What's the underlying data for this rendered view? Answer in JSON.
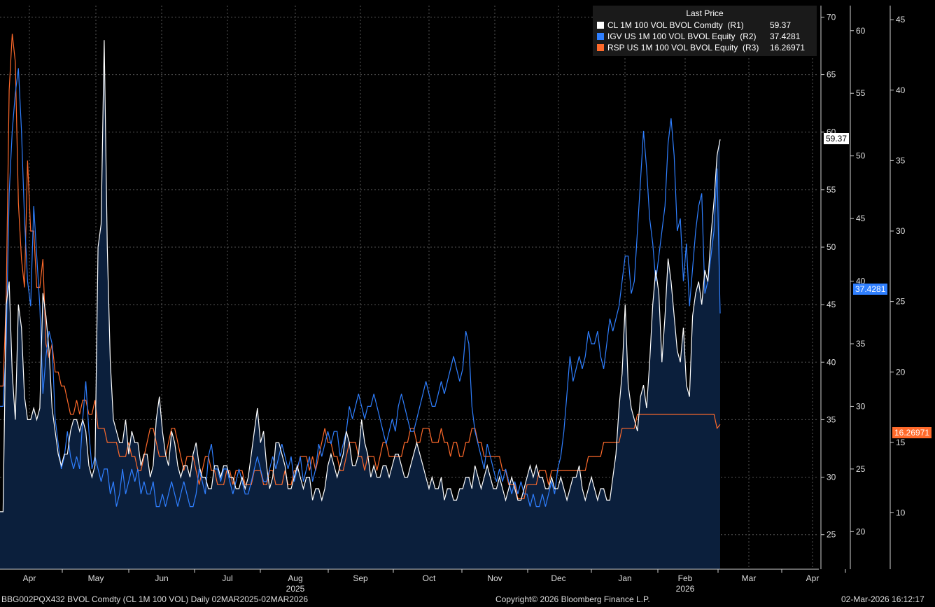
{
  "chart_data": {
    "type": "area",
    "legend_title": "Last Price",
    "x_labels": [
      "Apr",
      "May",
      "Jun",
      "Jul",
      "Aug",
      "Sep",
      "Oct",
      "Nov",
      "Dec",
      "Jan",
      "Feb",
      "Mar",
      "Apr"
    ],
    "year_labels": [
      {
        "month": "Aug",
        "year": "2025"
      },
      {
        "month": "Feb",
        "year": "2026"
      }
    ],
    "axes": {
      "R1": {
        "min": 22,
        "max": 71,
        "ticks": [
          25,
          30,
          35,
          40,
          45,
          50,
          55,
          60,
          65,
          70
        ]
      },
      "R2": {
        "min": 17,
        "max": 62,
        "ticks": [
          20,
          25,
          30,
          35,
          40,
          45,
          50,
          55,
          60
        ]
      },
      "R3": {
        "min": 6,
        "max": 46,
        "ticks": [
          10,
          15,
          20,
          25,
          30,
          35,
          40,
          45
        ]
      }
    },
    "series": [
      {
        "name": "CL 1M 100 VOL BVOL Comdty",
        "axis": "R1",
        "axis_label": "(R1)",
        "last": "59.37",
        "color": "#ffffff",
        "values": [
          27,
          27,
          45,
          47,
          39,
          35,
          45,
          43,
          37,
          35,
          35,
          36,
          35,
          36,
          46,
          44,
          41,
          36,
          34,
          32,
          31,
          32,
          32,
          34,
          35,
          35,
          34,
          35,
          34,
          31,
          30,
          31,
          50,
          52,
          68,
          50,
          40,
          35,
          34,
          33,
          33,
          35,
          32,
          34,
          33,
          33,
          31,
          32,
          32,
          30,
          31,
          35,
          37,
          34,
          32,
          31,
          34,
          33,
          31,
          30,
          31,
          31,
          30,
          32,
          33,
          31,
          30,
          30,
          29,
          29,
          31,
          31,
          30,
          31,
          31,
          30,
          30,
          29,
          29,
          30,
          29,
          30,
          32,
          34,
          36,
          33,
          34,
          31,
          29,
          30,
          33,
          33,
          32,
          31,
          29,
          29,
          30,
          31,
          30,
          29,
          30,
          30,
          28,
          29,
          29,
          28,
          29,
          31,
          32,
          31,
          30,
          31,
          32,
          34,
          33,
          31,
          31,
          32,
          35,
          33,
          32,
          30,
          31,
          30,
          30,
          31,
          31,
          30,
          31,
          32,
          32,
          31,
          30,
          30,
          31,
          32,
          33,
          32,
          31,
          30,
          29,
          30,
          29,
          29,
          30,
          28,
          29,
          29,
          28,
          28,
          29,
          29,
          30,
          30,
          29,
          31,
          30,
          29,
          30,
          31,
          30,
          29,
          29,
          30,
          29,
          28,
          29,
          30,
          29,
          28,
          28,
          29,
          30,
          31,
          30,
          31,
          30,
          30,
          29,
          29,
          30,
          29,
          29,
          30,
          29,
          28,
          29,
          30,
          30,
          31,
          29,
          28,
          29,
          30,
          29,
          28,
          29,
          29,
          28,
          28,
          30,
          32,
          36,
          39,
          45,
          38,
          36,
          35,
          34,
          37,
          38,
          36,
          40,
          45,
          48,
          46,
          40,
          44,
          49,
          47,
          44,
          41,
          40,
          43,
          38,
          37,
          44,
          46,
          47,
          45,
          48,
          47,
          51,
          54,
          58,
          59.37
        ]
      },
      {
        "name": "IGV US 1M 100 VOL BVOL Equity",
        "axis": "R2",
        "axis_label": "(R2)",
        "last": "37.4281",
        "color": "#2f7fff",
        "values": [
          30,
          30,
          35,
          47,
          52,
          55,
          57,
          52,
          45,
          40,
          38,
          46,
          42,
          38,
          31,
          34,
          36,
          35,
          29,
          27,
          25,
          26,
          28,
          26,
          25,
          26,
          25,
          29,
          32,
          28,
          25,
          26,
          25,
          24,
          25,
          25,
          23,
          24,
          22,
          23,
          25,
          23,
          24,
          25,
          24,
          25,
          23,
          24,
          23,
          23,
          24,
          22,
          22,
          23,
          22,
          23,
          24,
          23,
          22,
          23,
          24,
          23,
          22,
          22,
          23,
          25,
          24,
          23,
          26,
          27,
          25,
          25,
          24,
          25,
          25,
          24,
          23,
          24,
          25,
          24,
          23,
          23,
          24,
          25,
          26,
          25,
          24,
          24,
          25,
          26,
          25,
          26,
          27,
          26,
          25,
          26,
          24,
          25,
          26,
          24,
          25,
          26,
          24,
          25,
          27,
          26,
          27,
          28,
          27,
          28,
          28,
          26,
          27,
          28,
          30,
          29,
          30,
          31,
          30,
          29,
          30,
          30,
          31,
          30,
          29,
          28,
          27,
          28,
          29,
          28,
          30,
          31,
          30,
          29,
          28,
          28,
          29,
          30,
          31,
          32,
          31,
          30,
          30,
          31,
          32,
          31,
          32,
          33,
          34,
          33,
          32,
          33,
          36,
          35,
          30,
          28,
          27,
          26,
          25,
          27,
          26,
          25,
          24,
          25,
          24,
          25,
          24,
          23,
          24,
          23,
          24,
          23,
          23,
          22,
          23,
          22,
          22,
          23,
          22,
          23,
          24,
          23,
          25,
          26,
          28,
          31,
          34,
          32,
          33,
          34,
          33,
          34,
          36,
          35,
          35,
          36,
          34,
          33,
          35,
          37,
          36,
          37,
          38,
          40,
          42,
          42,
          39,
          40,
          44,
          48,
          52,
          49,
          45,
          43,
          40,
          42,
          44,
          46,
          51,
          53,
          50,
          44,
          45,
          40,
          43,
          38,
          41,
          44,
          46,
          47,
          39,
          40,
          42,
          44,
          49,
          37.4281
        ]
      },
      {
        "name": "RSP US 1M 100 VOL BVOL Equity",
        "axis": "R3",
        "axis_label": "(R3)",
        "last": "16.26971",
        "color": "#ff6a2b",
        "values": [
          19,
          19,
          25,
          40,
          44,
          42,
          32,
          28,
          26,
          35,
          30,
          30,
          26,
          26,
          28,
          22,
          21,
          22,
          20,
          20,
          19,
          19,
          18,
          17,
          17,
          18,
          17,
          18,
          18,
          17,
          17,
          18,
          16,
          16,
          16,
          15,
          15,
          15,
          15,
          14,
          14,
          14,
          15,
          14,
          14,
          13,
          13,
          14,
          15,
          16,
          16,
          15,
          14,
          14,
          14,
          15,
          16,
          16,
          15,
          14,
          13,
          14,
          14,
          14,
          13,
          12,
          13,
          14,
          14,
          13,
          13,
          12,
          12,
          12,
          13,
          13,
          12,
          13,
          13,
          13,
          12,
          12,
          12,
          13,
          13,
          13,
          12,
          12,
          13,
          13,
          12,
          12,
          12,
          13,
          12,
          12,
          13,
          13,
          14,
          14,
          14,
          13,
          14,
          13,
          14,
          15,
          16,
          15,
          15,
          14,
          14,
          13,
          13,
          14,
          15,
          15,
          15,
          14,
          14,
          13,
          14,
          14,
          14,
          13,
          14,
          15,
          15,
          14,
          14,
          14,
          14,
          14,
          15,
          15,
          16,
          16,
          15,
          15,
          16,
          16,
          16,
          15,
          15,
          15,
          16,
          15,
          15,
          14,
          15,
          15,
          14,
          14,
          15,
          15,
          16,
          16,
          15,
          15,
          14,
          14,
          14,
          14,
          14,
          14,
          13,
          13,
          12,
          12,
          12,
          11,
          11,
          11,
          12,
          12,
          12,
          12,
          13,
          13,
          13,
          12,
          13,
          13,
          13,
          13,
          13,
          13,
          13,
          13,
          13,
          13,
          13,
          13,
          14,
          14,
          14,
          14,
          14,
          15,
          15,
          15,
          15,
          15,
          15,
          16,
          16,
          16,
          16,
          16,
          17,
          17,
          17,
          17,
          17,
          17,
          17,
          17,
          17,
          17,
          17,
          17,
          17,
          17,
          17,
          17,
          17,
          17,
          17,
          17,
          17,
          17,
          17,
          17,
          17,
          17,
          16,
          16.26971
        ]
      }
    ]
  },
  "footer": {
    "left": "BBG002PQX432 BVOL Comdty (CL 1M 100 VOL) Daily 02MAR2025-02MAR2026",
    "center": "Copyright© 2026 Bloomberg Finance L.P.",
    "right": "02-Mar-2026 16:12:17"
  },
  "colors": {
    "background": "#000000",
    "area_fill": "#0b1f3c",
    "grid": "#555555",
    "axis": "#cfcfcf"
  }
}
